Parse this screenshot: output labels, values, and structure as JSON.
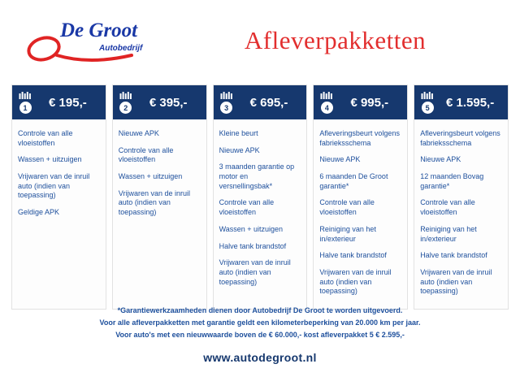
{
  "colors": {
    "navy": "#16386e",
    "item_blue": "#1d4f9c",
    "red": "#e22e2e",
    "logo_blue": "#1a38a6"
  },
  "logo": {
    "name": "De Groot",
    "subtitle": "Autobedrijf"
  },
  "page_title": "Afleverpakketten",
  "packages": [
    {
      "number": "1",
      "price": "€ 195,-",
      "items": [
        "Controle van alle vloeistoffen",
        "Wassen + uitzuigen",
        "Vrijwaren van de inruil auto (indien van toepassing)",
        "Geldige APK"
      ]
    },
    {
      "number": "2",
      "price": "€ 395,-",
      "items": [
        "Nieuwe APK",
        "Controle van alle vloeistoffen",
        "Wassen + uitzuigen",
        "Vrijwaren van de inruil auto (indien van toepassing)"
      ]
    },
    {
      "number": "3",
      "price": "€ 695,-",
      "items": [
        "Kleine beurt",
        "Nieuwe APK",
        "3 maanden garantie op motor en versnellingsbak*",
        "Controle van alle vloeistoffen",
        "Wassen + uitzuigen",
        "Halve tank brandstof",
        "Vrijwaren van de inruil auto (indien van toepassing)"
      ]
    },
    {
      "number": "4",
      "price": "€ 995,-",
      "items": [
        "Afleveringsbeurt volgens fabrieksschema",
        "Nieuwe APK",
        "6 maanden De Groot garantie*",
        "Controle van alle vloeistoffen",
        "Reiniging van het in/exterieur",
        "Halve tank brandstof",
        "Vrijwaren van de inruil auto (indien van toepassing)"
      ]
    },
    {
      "number": "5",
      "price": "€ 1.595,-",
      "items": [
        "Afleveringsbeurt volgens fabrieksschema",
        "Nieuwe APK",
        "12 maanden Bovag garantie*",
        "Controle van alle vloeistoffen",
        "Reiniging van het in/exterieur",
        "Halve tank brandstof",
        "Vrijwaren van de inruil auto (indien van toepassing)"
      ]
    }
  ],
  "footnotes": [
    "*Garantiewerkzaamheden dienen door Autobedrijf De Groot te worden uitgevoerd.",
    "Voor alle afleverpakketten met garantie geldt een kilometerbeperking van 20.000 km per jaar.",
    "Voor auto's met een nieuwwaarde boven de € 60.000,- kost afleverpakket 5 € 2.595,-"
  ],
  "website": "www.autodegroot.nl"
}
